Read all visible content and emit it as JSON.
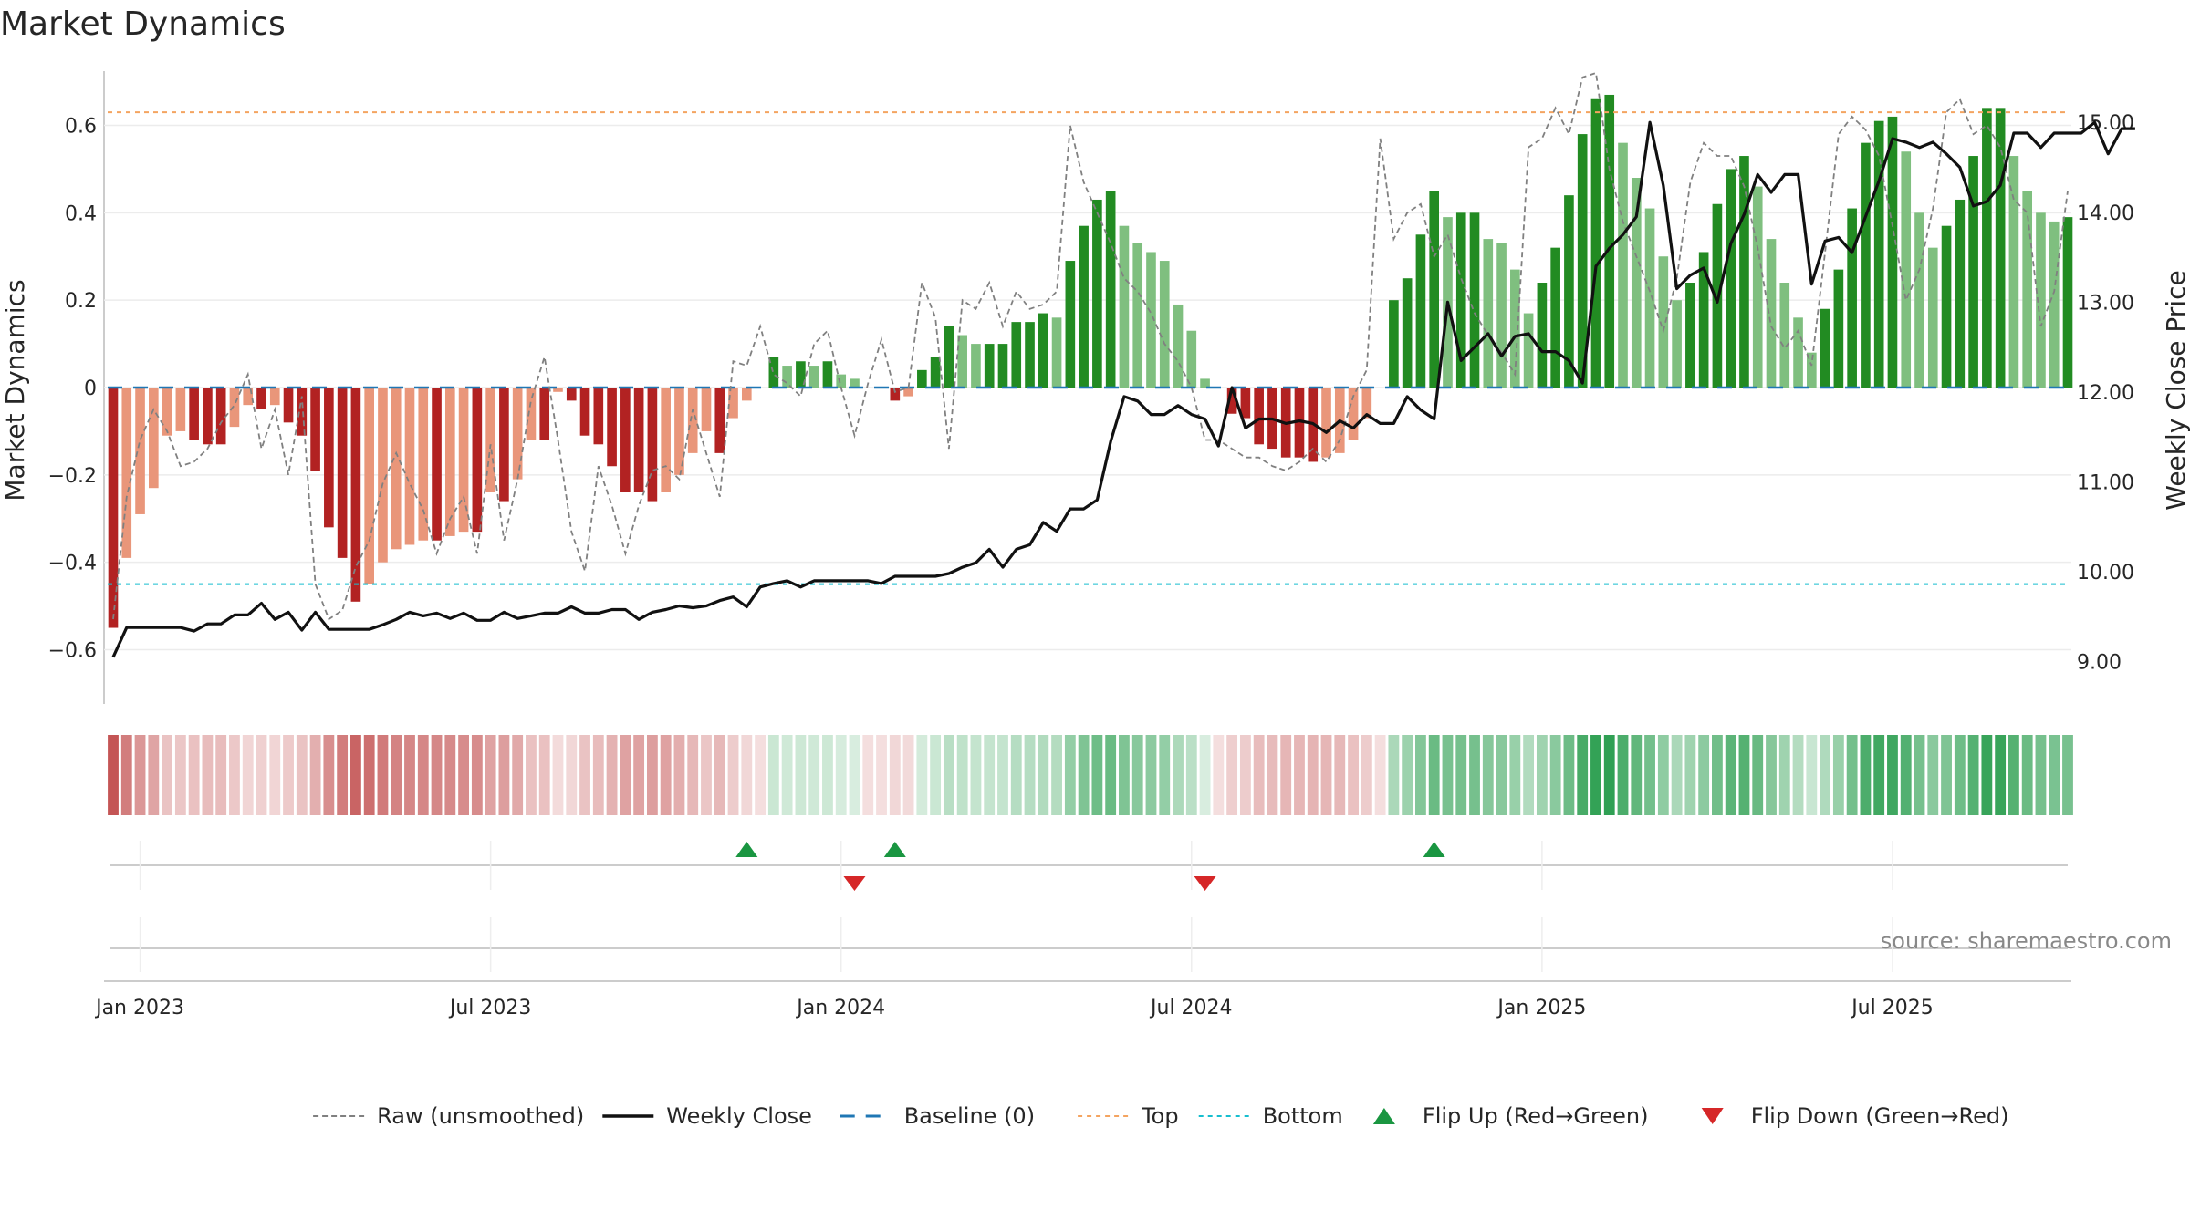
{
  "title": "Market Dynamics",
  "source_text": "source: sharemaestro.com",
  "colors": {
    "strong_red": "#b22222",
    "light_red": "#e9967a",
    "strong_green": "#228b22",
    "light_green": "#7fbf7f",
    "raw": "#808080",
    "close": "#111111",
    "baseline": "#1f77b4",
    "top": "#f4a460",
    "bottom": "#17becf",
    "flip_up": "#1a9641",
    "flip_down": "#d62728"
  },
  "chart_data": {
    "type": "bar",
    "title": "Market Dynamics",
    "ylabel": "Market Dynamics",
    "y2label": "Weekly Close Price",
    "ylim": [
      -0.72,
      0.72
    ],
    "y2lim": [
      8.55,
      15.55
    ],
    "y_ticks": [
      {
        "v": 0.6,
        "label": "0.6"
      },
      {
        "v": 0.4,
        "label": "0.4"
      },
      {
        "v": 0.2,
        "label": "0.2"
      },
      {
        "v": 0,
        "label": "0"
      },
      {
        "v": -0.2,
        "label": "−0.2"
      },
      {
        "v": -0.4,
        "label": "−0.4"
      },
      {
        "v": -0.6,
        "label": "−0.6"
      }
    ],
    "y2_ticks": [
      {
        "v": 15,
        "label": "15.00"
      },
      {
        "v": 14,
        "label": "14.00"
      },
      {
        "v": 13,
        "label": "13.00"
      },
      {
        "v": 12,
        "label": "12.00"
      },
      {
        "v": 11,
        "label": "11.00"
      },
      {
        "v": 10,
        "label": "10.00"
      },
      {
        "v": 9,
        "label": "9.00"
      }
    ],
    "x_ticks": [
      {
        "week": 2,
        "label": "Jan 2023"
      },
      {
        "week": 28,
        "label": "Jul 2023"
      },
      {
        "week": 54,
        "label": "Jan 2024"
      },
      {
        "week": 80,
        "label": "Jul 2024"
      },
      {
        "week": 106,
        "label": "Jan 2025"
      },
      {
        "week": 132,
        "label": "Jul 2025"
      }
    ],
    "top_level": 0.63,
    "bottom_level": -0.45,
    "baseline": 0,
    "values": [
      -0.55,
      -0.39,
      -0.29,
      -0.23,
      -0.11,
      -0.1,
      -0.12,
      -0.13,
      -0.13,
      -0.09,
      -0.04,
      -0.05,
      -0.04,
      -0.08,
      -0.11,
      -0.19,
      -0.32,
      -0.39,
      -0.49,
      -0.45,
      -0.4,
      -0.37,
      -0.36,
      -0.35,
      -0.35,
      -0.34,
      -0.33,
      -0.33,
      -0.24,
      -0.26,
      -0.21,
      -0.12,
      -0.12,
      -0.01,
      -0.03,
      -0.11,
      -0.13,
      -0.18,
      -0.24,
      -0.24,
      -0.26,
      -0.24,
      -0.2,
      -0.15,
      -0.1,
      -0.15,
      -0.07,
      -0.03,
      0,
      0.07,
      0.05,
      0.06,
      0.05,
      0.06,
      0.03,
      0.02,
      0,
      0,
      -0.03,
      -0.02,
      0.04,
      0.07,
      0.14,
      0.12,
      0.1,
      0.1,
      0.1,
      0.15,
      0.15,
      0.17,
      0.16,
      0.29,
      0.37,
      0.43,
      0.45,
      0.37,
      0.33,
      0.31,
      0.29,
      0.19,
      0.13,
      0.02,
      0,
      -0.06,
      -0.07,
      -0.13,
      -0.14,
      -0.16,
      -0.16,
      -0.17,
      -0.16,
      -0.15,
      -0.12,
      -0.07,
      0,
      0.2,
      0.25,
      0.35,
      0.45,
      0.39,
      0.4,
      0.4,
      0.34,
      0.33,
      0.27,
      0.17,
      0.24,
      0.32,
      0.44,
      0.58,
      0.66,
      0.67,
      0.56,
      0.48,
      0.41,
      0.3,
      0.2,
      0.24,
      0.31,
      0.42,
      0.5,
      0.53,
      0.46,
      0.34,
      0.24,
      0.16,
      0.08,
      0.18,
      0.27,
      0.41,
      0.56,
      0.61,
      0.62,
      0.54,
      0.4,
      0.32,
      0.37,
      0.43,
      0.53,
      0.64,
      0.64,
      0.53,
      0.45,
      0.4,
      0.38,
      0.39
    ],
    "raw_values": [
      -0.53,
      -0.25,
      -0.12,
      -0.05,
      -0.1,
      -0.18,
      -0.17,
      -0.14,
      -0.08,
      -0.04,
      0.03,
      -0.14,
      -0.05,
      -0.2,
      -0.02,
      -0.45,
      -0.53,
      -0.51,
      -0.41,
      -0.35,
      -0.22,
      -0.15,
      -0.22,
      -0.28,
      -0.38,
      -0.3,
      -0.25,
      -0.38,
      -0.13,
      -0.35,
      -0.21,
      -0.03,
      0.07,
      -0.12,
      -0.33,
      -0.42,
      -0.18,
      -0.27,
      -0.38,
      -0.27,
      -0.19,
      -0.18,
      -0.21,
      -0.05,
      -0.15,
      -0.25,
      0.06,
      0.05,
      0.14,
      0.03,
      0.01,
      -0.02,
      0.1,
      0.13,
      0.0,
      -0.11,
      0.01,
      0.11,
      -0.01,
      0.0,
      0.24,
      0.16,
      -0.14,
      0.2,
      0.18,
      0.24,
      0.14,
      0.22,
      0.18,
      0.19,
      0.22,
      0.6,
      0.47,
      0.4,
      0.33,
      0.25,
      0.22,
      0.17,
      0.1,
      0.06,
      0.0,
      -0.12,
      -0.12,
      -0.14,
      -0.16,
      -0.16,
      -0.18,
      -0.19,
      -0.17,
      -0.14,
      -0.17,
      -0.12,
      -0.02,
      0.04,
      0.57,
      0.34,
      0.4,
      0.42,
      0.3,
      0.35,
      0.25,
      0.17,
      0.12,
      0.08,
      0.03,
      0.55,
      0.57,
      0.64,
      0.58,
      0.71,
      0.72,
      0.5,
      0.38,
      0.3,
      0.22,
      0.13,
      0.25,
      0.47,
      0.56,
      0.53,
      0.53,
      0.46,
      0.32,
      0.14,
      0.09,
      0.13,
      0.05,
      0.31,
      0.58,
      0.62,
      0.59,
      0.53,
      0.37,
      0.2,
      0.27,
      0.41,
      0.63,
      0.66,
      0.58,
      0.6,
      0.55,
      0.43,
      0.4,
      0.14,
      0.22,
      0.45
    ],
    "close_prices": [
      9.05,
      9.38,
      9.38,
      9.38,
      9.38,
      9.38,
      9.34,
      9.42,
      9.42,
      9.52,
      9.52,
      9.65,
      9.47,
      9.55,
      9.35,
      9.55,
      9.36,
      9.36,
      9.36,
      9.36,
      9.41,
      9.47,
      9.55,
      9.51,
      9.54,
      9.48,
      9.54,
      9.46,
      9.46,
      9.55,
      9.48,
      9.51,
      9.54,
      9.54,
      9.61,
      9.54,
      9.54,
      9.58,
      9.58,
      9.47,
      9.55,
      9.58,
      9.62,
      9.6,
      9.62,
      9.68,
      9.72,
      9.61,
      9.83,
      9.87,
      9.9,
      9.83,
      9.9,
      9.9,
      9.9,
      9.9,
      9.9,
      9.87,
      9.95,
      9.95,
      9.95,
      9.95,
      9.98,
      10.05,
      10.1,
      10.25,
      10.05,
      10.25,
      10.3,
      10.55,
      10.45,
      10.7,
      10.7,
      10.8,
      11.45,
      11.95,
      11.9,
      11.75,
      11.75,
      11.85,
      11.75,
      11.7,
      11.4,
      12.05,
      11.6,
      11.7,
      11.7,
      11.65,
      11.68,
      11.65,
      11.55,
      11.68,
      11.6,
      11.75,
      11.65,
      11.65,
      11.95,
      11.8,
      11.7,
      13.0,
      12.35,
      12.5,
      12.65,
      12.4,
      12.62,
      12.65,
      12.45,
      12.45,
      12.35,
      12.1,
      13.4,
      13.6,
      13.75,
      13.95,
      15.0,
      14.3,
      13.15,
      13.3,
      13.38,
      13.0,
      13.65,
      13.98,
      14.42,
      14.22,
      14.42,
      14.42,
      13.2,
      13.68,
      13.72,
      13.55,
      13.95,
      14.35,
      14.82,
      14.78,
      14.72,
      14.78,
      14.65,
      14.5,
      14.07,
      14.12,
      14.3,
      14.88,
      14.88,
      14.72,
      14.88,
      14.88,
      14.88,
      15.0,
      14.65,
      14.93,
      14.93
    ],
    "flip_up_weeks": [
      47,
      58,
      98
    ],
    "flip_down_weeks": [
      55,
      81
    ]
  },
  "legend": [
    {
      "kind": "raw",
      "label": "Raw (unsmoothed)"
    },
    {
      "kind": "close",
      "label": "Weekly Close"
    },
    {
      "kind": "baseline",
      "label": "Baseline (0)"
    },
    {
      "kind": "top",
      "label": "Top"
    },
    {
      "kind": "bottom",
      "label": "Bottom"
    },
    {
      "kind": "flipup",
      "label": "Flip Up (Red→Green)"
    },
    {
      "kind": "flipdown",
      "label": "Flip Down (Green→Red)"
    }
  ]
}
